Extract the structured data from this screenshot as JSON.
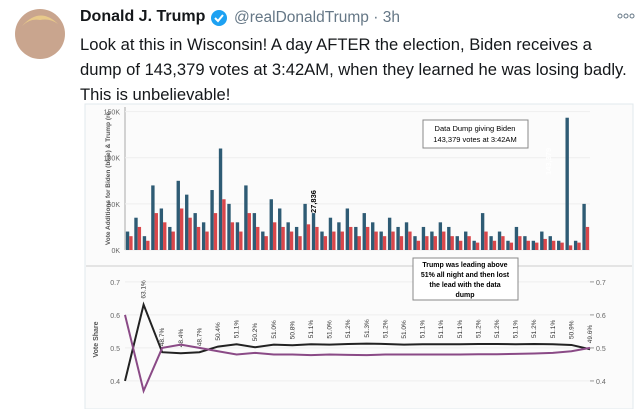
{
  "tweet": {
    "name": "Donald J. Trump",
    "handle": "@realDonaldTrump",
    "separator": "·",
    "time": "3h",
    "text": "Look at this in Wisconsin! A day AFTER the election, Biden receives a dump of 143,379 votes at 3:42AM, when they learned he was losing badly. This is unbelievable!"
  },
  "chart_data": [
    {
      "type": "bar",
      "y_label": "Vote Additions for Biden (blue) & Trump (re",
      "ylim": [
        0,
        155000
      ],
      "yticks": [
        {
          "value": 0,
          "label": "0K"
        },
        {
          "value": 50000,
          "label": "50K"
        },
        {
          "value": 100000,
          "label": "100K"
        },
        {
          "value": 150000,
          "label": "150K"
        }
      ],
      "annotations": [
        "Data Dump giving Biden",
        "143,379 votes at 3:42AM",
        "27,836",
        "143,379"
      ],
      "series": [
        {
          "color": "#2e5b74",
          "values": [
            20000,
            35000,
            15000,
            70000,
            45000,
            25000,
            75000,
            60000,
            40000,
            30000,
            65000,
            110000,
            50000,
            30000,
            70000,
            40000,
            20000,
            55000,
            45000,
            30000,
            25000,
            50000,
            40000,
            20000,
            35000,
            30000,
            45000,
            25000,
            40000,
            30000,
            20000,
            35000,
            25000,
            30000,
            15000,
            25000,
            20000,
            30000,
            25000,
            15000,
            20000,
            10000,
            40000,
            15000,
            20000,
            10000,
            25000,
            15000,
            10000,
            20000,
            15000,
            10000,
            143379,
            10000,
            50000
          ]
        },
        {
          "color": "#d9474b",
          "values": [
            15000,
            25000,
            10000,
            40000,
            30000,
            20000,
            45000,
            35000,
            25000,
            20000,
            40000,
            55000,
            30000,
            20000,
            40000,
            25000,
            15000,
            30000,
            25000,
            20000,
            15000,
            27836,
            25000,
            15000,
            20000,
            20000,
            25000,
            15000,
            25000,
            20000,
            15000,
            20000,
            15000,
            20000,
            10000,
            15000,
            15000,
            20000,
            15000,
            10000,
            15000,
            8000,
            20000,
            10000,
            15000,
            8000,
            15000,
            10000,
            8000,
            12000,
            10000,
            8000,
            5000,
            8000,
            25000
          ]
        }
      ]
    },
    {
      "type": "line",
      "y_label": "Vote Share",
      "ylim": [
        0.315,
        0.736
      ],
      "yticks": [
        0.4,
        0.5,
        0.6,
        0.7
      ],
      "y2ticks": [
        0.4,
        0.5,
        0.6,
        0.7
      ],
      "annotations": [
        "Trump was leading above",
        "51% all night and then lost",
        "the lead with the data",
        "dump"
      ],
      "series": [
        {
          "color": "#222222",
          "values": [
            0.4,
            0.631,
            0.487,
            0.484,
            0.487,
            0.504,
            0.511,
            0.502,
            0.51,
            0.508,
            0.511,
            0.51,
            0.512,
            0.513,
            0.512,
            0.51,
            0.511,
            0.511,
            0.511,
            0.512,
            0.512,
            0.511,
            0.512,
            0.511,
            0.509,
            0.496
          ],
          "value_labels": [
            null,
            "63.1%",
            "48.7%",
            "48.4%",
            "48.7%",
            "50.4%",
            "51.1%",
            "50.2%",
            "51.0%",
            "50.8%",
            "51.1%",
            "51.0%",
            "51.2%",
            "51.3%",
            "51.2%",
            "51.0%",
            "51.1%",
            "51.1%",
            "51.1%",
            "51.2%",
            "51.2%",
            "51.1%",
            "51.2%",
            "51.1%",
            "50.9%",
            "49.6%"
          ]
        },
        {
          "color": "#8a4a86",
          "values": [
            0.6,
            0.37,
            0.5,
            0.51,
            0.5,
            0.49,
            0.48,
            0.485,
            0.48,
            0.48,
            0.478,
            0.48,
            0.479,
            0.478,
            0.48,
            0.48,
            0.48,
            0.48,
            0.48,
            0.481,
            0.481,
            0.482,
            0.483,
            0.485,
            0.49,
            0.5
          ]
        }
      ]
    }
  ]
}
